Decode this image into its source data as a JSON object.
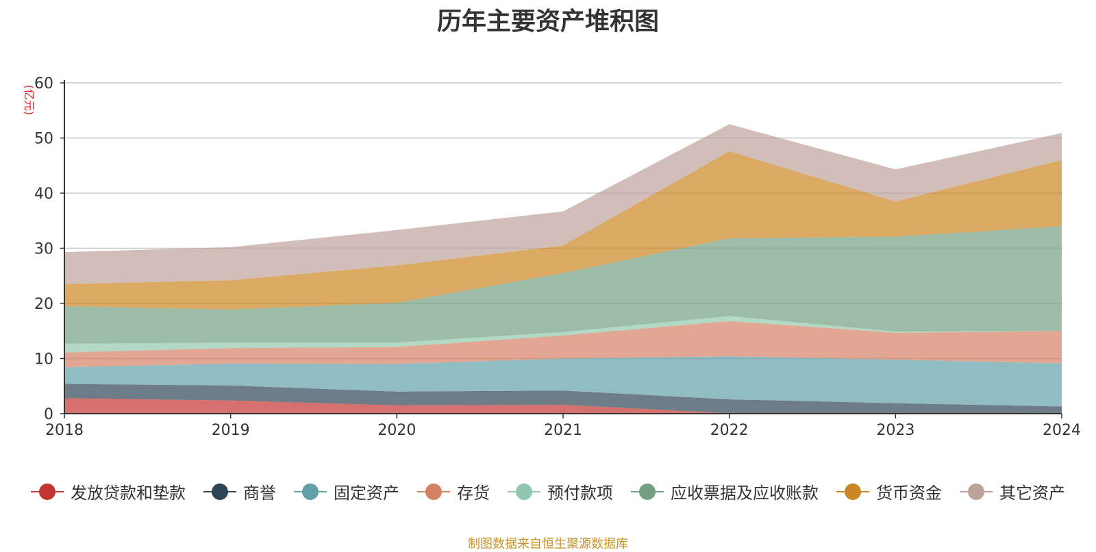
{
  "chart_data": {
    "type": "area",
    "stacked": true,
    "title": "历年主要资产堆积图",
    "unit_label": "(亿元)",
    "x": [
      "2018",
      "2019",
      "2020",
      "2021",
      "2022",
      "2023",
      "2024"
    ],
    "ylim": [
      0,
      60
    ],
    "yticks": [
      0,
      10,
      20,
      30,
      40,
      50,
      60
    ],
    "grid": true,
    "legend_position": "bottom",
    "series": [
      {
        "name": "发放贷款和垫款",
        "color": "#c23531",
        "values": [
          2.8,
          2.4,
          1.5,
          1.6,
          0.1,
          0.0,
          0.0
        ]
      },
      {
        "name": "商誉",
        "color": "#2f4554",
        "values": [
          2.6,
          2.7,
          2.5,
          2.6,
          2.5,
          1.9,
          1.3
        ]
      },
      {
        "name": "固定资产",
        "color": "#61a0a8",
        "values": [
          3.0,
          4.0,
          5.0,
          5.8,
          7.8,
          7.9,
          7.8
        ]
      },
      {
        "name": "存货",
        "color": "#d48265",
        "values": [
          2.7,
          2.8,
          3.1,
          4.2,
          6.4,
          4.9,
          5.9
        ]
      },
      {
        "name": "预付款项",
        "color": "#91c7ae",
        "values": [
          1.6,
          1.0,
          0.8,
          0.6,
          0.9,
          0.2,
          0.0
        ]
      },
      {
        "name": "应收票据及应收账款",
        "color": "#749f83",
        "values": [
          6.8,
          6.0,
          7.2,
          10.7,
          14.1,
          17.2,
          19.0
        ]
      },
      {
        "name": "货币资金",
        "color": "#ca8622",
        "values": [
          4.0,
          5.3,
          6.8,
          5.0,
          15.8,
          6.4,
          12.0
        ]
      },
      {
        "name": "其它资产",
        "color": "#bda29a",
        "values": [
          5.8,
          6.0,
          6.4,
          6.2,
          4.9,
          5.8,
          4.9
        ]
      }
    ]
  },
  "footer": "制图数据来自恒生聚源数据库"
}
